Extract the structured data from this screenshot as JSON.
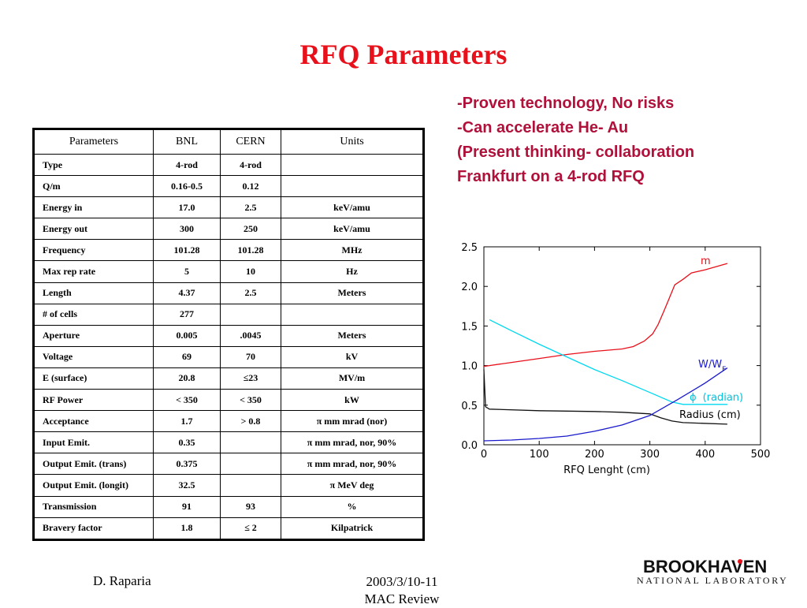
{
  "slide": {
    "title": "RFQ Parameters",
    "bullets": [
      "-Proven technology, No risks",
      "-Can accelerate He- Au",
      "(Present thinking- collaboration",
      "Frankfurt on a 4-rod RFQ"
    ]
  },
  "table": {
    "headers": [
      "Parameters",
      "BNL",
      "CERN",
      "Units"
    ],
    "rows": [
      [
        "Type",
        "4-rod",
        "4-rod",
        ""
      ],
      [
        "Q/m",
        "0.16-0.5",
        "0.12",
        ""
      ],
      [
        " Energy in",
        "17.0",
        "2.5",
        "keV/amu"
      ],
      [
        " Energy out",
        "300",
        "250",
        "keV/amu"
      ],
      [
        "Frequency",
        "101.28",
        "101.28",
        "MHz"
      ],
      [
        "Max rep rate",
        "5",
        "10",
        "Hz"
      ],
      [
        "Length",
        "4.37",
        "2.5",
        "Meters"
      ],
      [
        "# of cells",
        "277",
        "",
        ""
      ],
      [
        "Aperture",
        "0.005",
        ".0045",
        "Meters"
      ],
      [
        "Voltage",
        "69",
        "70",
        "kV"
      ],
      [
        "E (surface)",
        "20.8",
        "≤23",
        "MV/m"
      ],
      [
        "RF Power",
        "< 350",
        "< 350",
        "kW"
      ],
      [
        "Acceptance",
        "1.7",
        "> 0.8",
        "π mm mrad (nor)"
      ],
      [
        "Input Emit.",
        "0.35",
        "",
        "π mm mrad, nor, 90%"
      ],
      [
        "Output Emit. (trans)",
        "0.375",
        "",
        "π mm mrad, nor, 90%"
      ],
      [
        "Output Emit. (longit)",
        "32.5",
        "",
        "π MeV deg"
      ],
      [
        "Transmission",
        "91",
        "93",
        "%"
      ],
      [
        "Bravery factor",
        "1.8",
        "≤ 2",
        "Kilpatrick"
      ]
    ]
  },
  "chart_data": {
    "type": "line",
    "xlabel": "RFQ Lenght (cm)",
    "ylabel": "",
    "xlim": [
      0,
      500
    ],
    "ylim": [
      0,
      2.5
    ],
    "xticks": [
      "0",
      "100",
      "200",
      "300",
      "400",
      "500"
    ],
    "yticks": [
      "0.0",
      "0.5",
      "1.0",
      "1.5",
      "2.0",
      "2.5"
    ],
    "series": [
      {
        "name": "m",
        "color": "#e8101a",
        "points": [
          [
            0,
            0.99
          ],
          [
            50,
            1.04
          ],
          [
            100,
            1.09
          ],
          [
            150,
            1.14
          ],
          [
            200,
            1.18
          ],
          [
            250,
            1.21
          ],
          [
            270,
            1.24
          ],
          [
            290,
            1.31
          ],
          [
            305,
            1.4
          ],
          [
            315,
            1.52
          ],
          [
            325,
            1.68
          ],
          [
            335,
            1.85
          ],
          [
            345,
            2.02
          ],
          [
            360,
            2.09
          ],
          [
            375,
            2.17
          ],
          [
            400,
            2.21
          ],
          [
            420,
            2.25
          ],
          [
            440,
            2.29
          ]
        ]
      },
      {
        "name": "φ (radian)",
        "color": "#00d8f0",
        "points": [
          [
            10,
            1.58
          ],
          [
            50,
            1.44
          ],
          [
            100,
            1.27
          ],
          [
            150,
            1.11
          ],
          [
            200,
            0.95
          ],
          [
            250,
            0.81
          ],
          [
            300,
            0.66
          ],
          [
            340,
            0.54
          ],
          [
            360,
            0.51
          ],
          [
            440,
            0.51
          ]
        ]
      },
      {
        "name": "Radius (cm)",
        "color": "#111111",
        "points": [
          [
            0,
            0.95
          ],
          [
            3,
            0.48
          ],
          [
            10,
            0.45
          ],
          [
            100,
            0.43
          ],
          [
            200,
            0.42
          ],
          [
            250,
            0.41
          ],
          [
            300,
            0.39
          ],
          [
            320,
            0.34
          ],
          [
            340,
            0.3
          ],
          [
            360,
            0.28
          ],
          [
            440,
            0.26
          ]
        ]
      },
      {
        "name": "W/W_F",
        "color": "#1a1acc",
        "points": [
          [
            0,
            0.05
          ],
          [
            50,
            0.06
          ],
          [
            100,
            0.08
          ],
          [
            150,
            0.11
          ],
          [
            200,
            0.17
          ],
          [
            250,
            0.25
          ],
          [
            300,
            0.37
          ],
          [
            350,
            0.57
          ],
          [
            400,
            0.78
          ],
          [
            440,
            0.97
          ]
        ]
      }
    ],
    "labels": {
      "m": "m",
      "ww": "W/W",
      "ww_sub": "F",
      "phi_symbol": "ϕ",
      "phi": "(radian)",
      "radius": "Radius (cm)"
    }
  },
  "footer": {
    "author": "D. Raparia",
    "date": "2003/3/10-11",
    "event": "MAC Review"
  },
  "logo": {
    "name": "BROOKHAVEN",
    "subtitle": "NATIONAL LABORATORY",
    "dot_color": "#e8101a"
  }
}
